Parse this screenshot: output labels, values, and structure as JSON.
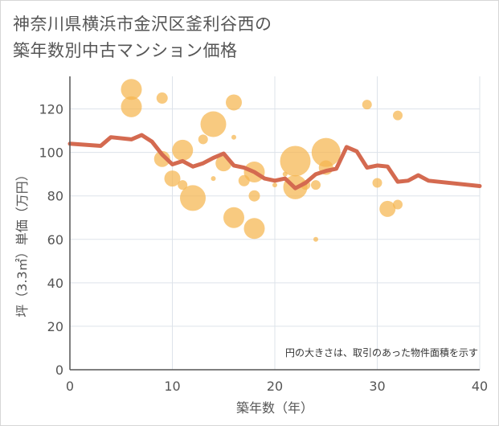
{
  "chart_data": {
    "type": "scatter",
    "title_lines": [
      "神奈川県横浜市金沢区釜利谷西の",
      "築年数別中古マンション価格"
    ],
    "xlabel": "築年数（年）",
    "ylabel": "坪（3.3㎡）単価（万円）",
    "xlim": [
      0,
      40
    ],
    "ylim": [
      0,
      135
    ],
    "xticks": [
      0,
      10,
      20,
      30,
      40
    ],
    "yticks": [
      0,
      20,
      40,
      60,
      80,
      100,
      120
    ],
    "grid": true,
    "annotation": "円の大きさは、取引のあった物件面積を示す",
    "colors": {
      "bubble": "#f5b54f",
      "line": "#d46a50",
      "grid": "#dde3ea",
      "axis": "#555555"
    },
    "bubbles": [
      {
        "x": 6,
        "y": 129,
        "size": 13
      },
      {
        "x": 6,
        "y": 121,
        "size": 13
      },
      {
        "x": 9,
        "y": 125,
        "size": 7
      },
      {
        "x": 9,
        "y": 97,
        "size": 10
      },
      {
        "x": 10,
        "y": 88,
        "size": 10
      },
      {
        "x": 11,
        "y": 101,
        "size": 13
      },
      {
        "x": 11,
        "y": 85,
        "size": 6
      },
      {
        "x": 12,
        "y": 79,
        "size": 16
      },
      {
        "x": 13,
        "y": 106,
        "size": 6
      },
      {
        "x": 14,
        "y": 113,
        "size": 16
      },
      {
        "x": 14,
        "y": 88,
        "size": 3
      },
      {
        "x": 15,
        "y": 95,
        "size": 10
      },
      {
        "x": 16,
        "y": 123,
        "size": 10
      },
      {
        "x": 16,
        "y": 107,
        "size": 3
      },
      {
        "x": 16,
        "y": 70,
        "size": 13
      },
      {
        "x": 17,
        "y": 87,
        "size": 7
      },
      {
        "x": 18,
        "y": 91,
        "size": 13
      },
      {
        "x": 18,
        "y": 80,
        "size": 7
      },
      {
        "x": 18,
        "y": 65,
        "size": 13
      },
      {
        "x": 20,
        "y": 85,
        "size": 3
      },
      {
        "x": 21,
        "y": 90,
        "size": 3
      },
      {
        "x": 22,
        "y": 96,
        "size": 19
      },
      {
        "x": 22,
        "y": 84,
        "size": 15
      },
      {
        "x": 23,
        "y": 85,
        "size": 6
      },
      {
        "x": 24,
        "y": 85,
        "size": 6
      },
      {
        "x": 24,
        "y": 60,
        "size": 3
      },
      {
        "x": 25,
        "y": 100,
        "size": 18
      },
      {
        "x": 25,
        "y": 93,
        "size": 9
      },
      {
        "x": 29,
        "y": 122,
        "size": 6
      },
      {
        "x": 30,
        "y": 86,
        "size": 6
      },
      {
        "x": 31,
        "y": 74,
        "size": 10
      },
      {
        "x": 32,
        "y": 117,
        "size": 6
      },
      {
        "x": 32,
        "y": 76,
        "size": 6
      }
    ],
    "trend_line": {
      "x": [
        0,
        3,
        4,
        6,
        7,
        8,
        9,
        10,
        11,
        12,
        13,
        14,
        15,
        16,
        17,
        18,
        19,
        20,
        21,
        22,
        23,
        24,
        25,
        26,
        27,
        28,
        29,
        30,
        31,
        32,
        33,
        34,
        35,
        40
      ],
      "y": [
        104,
        103,
        107,
        106,
        108,
        105,
        99,
        94.5,
        96,
        93.5,
        95,
        97.5,
        99.5,
        94,
        93,
        91,
        88,
        87,
        88,
        83.5,
        86,
        90,
        91.5,
        92.5,
        102.5,
        100.5,
        93,
        94,
        93.5,
        86.5,
        87,
        89.5,
        87,
        84.5
      ]
    }
  }
}
